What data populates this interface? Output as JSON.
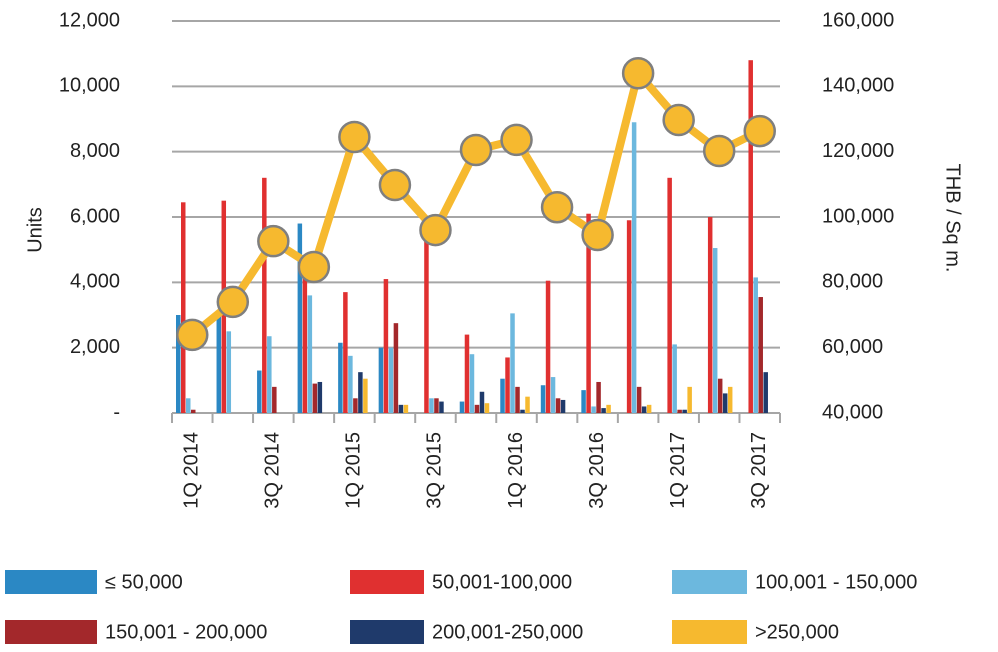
{
  "chart_data": {
    "type": "bar",
    "y_label": "Units",
    "y2_label": "THB / Sq m.",
    "categories": [
      "1Q 2014",
      null,
      "3Q 2014",
      null,
      "1Q 2015",
      null,
      "3Q 2015",
      null,
      "1Q 2016",
      null,
      "3Q 2016",
      null,
      "1Q 2017",
      null,
      "3Q 2017"
    ],
    "ylim": [
      0,
      12000
    ],
    "yticks": [
      {
        "value": 0,
        "label": "-"
      },
      {
        "value": 2000,
        "label": "2,000"
      },
      {
        "value": 4000,
        "label": "4,000"
      },
      {
        "value": 6000,
        "label": "6,000"
      },
      {
        "value": 8000,
        "label": "8,000"
      },
      {
        "value": 10000,
        "label": "10,000"
      },
      {
        "value": 12000,
        "label": "12,000"
      }
    ],
    "y2lim": [
      40000,
      160000
    ],
    "y2ticks": [
      {
        "value": 40000,
        "label": "40,000"
      },
      {
        "value": 60000,
        "label": "60,000"
      },
      {
        "value": 80000,
        "label": "80,000"
      },
      {
        "value": 100000,
        "label": "100,000"
      },
      {
        "value": 120000,
        "label": "120,000"
      },
      {
        "value": 140000,
        "label": "140,000"
      },
      {
        "value": 160000,
        "label": "160,000"
      }
    ],
    "grid": true,
    "series": [
      {
        "name": "≤ 50,000",
        "type": "bar",
        "color": "#2b88c4",
        "values": [
          3000,
          3000,
          1300,
          5800,
          2150,
          2000,
          0,
          350,
          1050,
          850,
          700,
          0,
          0,
          0,
          0
        ]
      },
      {
        "name": "50,001-100,000",
        "type": "bar",
        "color": "#e03030",
        "values": [
          6450,
          6500,
          7200,
          4800,
          3700,
          4100,
          5600,
          2400,
          1700,
          4050,
          6100,
          5900,
          7200,
          6000,
          10800
        ]
      },
      {
        "name": "100,001 - 150,000",
        "type": "bar",
        "color": "#6cb8de",
        "values": [
          450,
          2500,
          2350,
          3600,
          1750,
          2000,
          450,
          1800,
          3050,
          1100,
          200,
          8900,
          2100,
          5050,
          4150
        ]
      },
      {
        "name": "150,001 - 200,000",
        "type": "bar",
        "color": "#a3282b",
        "values": [
          100,
          0,
          800,
          900,
          450,
          2750,
          450,
          250,
          800,
          450,
          950,
          800,
          100,
          1050,
          3550
        ]
      },
      {
        "name": "200,001-250,000",
        "type": "bar",
        "color": "#1f3a6b",
        "values": [
          0,
          0,
          0,
          950,
          1250,
          250,
          350,
          650,
          100,
          400,
          150,
          200,
          100,
          600,
          1250
        ]
      },
      {
        "name": ">250,000",
        "type": "bar",
        "color": "#f6b92f",
        "values": [
          0,
          0,
          0,
          0,
          1050,
          250,
          0,
          300,
          500,
          0,
          250,
          250,
          800,
          800,
          0
        ]
      },
      {
        "type": "line",
        "axis": "y2",
        "color": "#f6b92f",
        "values": [
          63900,
          74000,
          92600,
          84700,
          124500,
          109800,
          96000,
          120500,
          123600,
          103000,
          94500,
          144000,
          129700,
          120200,
          126300
        ]
      }
    ]
  }
}
